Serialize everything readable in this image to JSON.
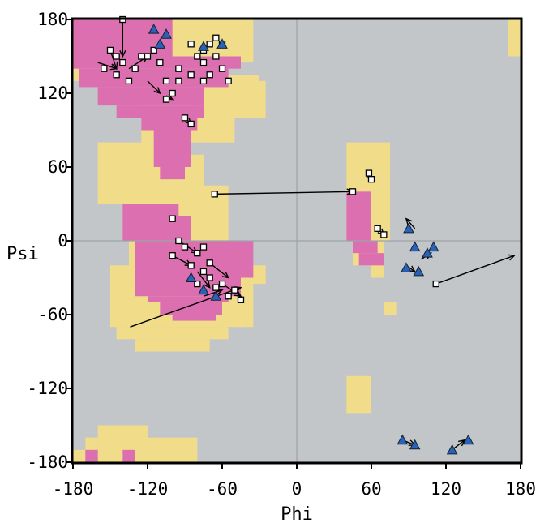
{
  "chart_data": {
    "type": "scatter",
    "title": "",
    "xlabel": "Phi",
    "ylabel": "Psi",
    "xlim": [
      -180,
      180
    ],
    "ylim": [
      -180,
      180
    ],
    "x_ticks": [
      "-180",
      "-120",
      "-60",
      "0",
      "60",
      "120",
      "180"
    ],
    "y_ticks": [
      "180",
      "120",
      "60",
      "0",
      "-60",
      "-120",
      "-180"
    ],
    "grid": "lines at phi=0 and psi=0 only",
    "colors": {
      "background": "#c2c6c9",
      "favored": "#dc6fb0",
      "allowed": "#f1dc8a",
      "gridline": "#9da3a7",
      "glycine_marker": "#2a62b8"
    },
    "regions": [
      {
        "level": "allowed",
        "rects": [
          [
            -180,
            -120,
            180,
            130
          ],
          [
            -125,
            -85,
            130,
            80
          ],
          [
            -160,
            -95,
            80,
            30
          ],
          [
            -120,
            -35,
            180,
            145
          ],
          [
            -75,
            -30,
            135,
            100
          ],
          [
            -85,
            -50,
            100,
            80
          ],
          [
            -60,
            -25,
            130,
            100
          ],
          [
            -110,
            -75,
            70,
            40
          ],
          [
            -135,
            -55,
            45,
            -20
          ],
          [
            -150,
            -25,
            -20,
            -35
          ],
          [
            -150,
            -35,
            -35,
            -60
          ],
          [
            -150,
            -40,
            -60,
            -70
          ],
          [
            -145,
            -55,
            -70,
            -80
          ],
          [
            -130,
            -70,
            -80,
            -90
          ],
          [
            -90,
            -85,
            -60,
            -70
          ],
          [
            -40,
            -35,
            -55,
            -70
          ],
          [
            -180,
            -170,
            -170,
            -180
          ],
          [
            -170,
            -160,
            -160,
            -180
          ],
          [
            -160,
            -120,
            -150,
            -180
          ],
          [
            -120,
            -80,
            -160,
            -180
          ],
          [
            40,
            75,
            80,
            50
          ],
          [
            40,
            75,
            50,
            0
          ],
          [
            35,
            80,
            0,
            0
          ],
          [
            45,
            70,
            0,
            -20
          ],
          [
            60,
            70,
            -20,
            -30
          ],
          [
            70,
            80,
            -50,
            -60
          ],
          [
            40,
            60,
            -110,
            -140
          ],
          [
            170,
            180,
            180,
            150
          ]
        ]
      },
      {
        "level": "favored",
        "rects": [
          [
            -180,
            -100,
            180,
            150
          ],
          [
            -180,
            -45,
            150,
            140
          ],
          [
            -175,
            -55,
            140,
            125
          ],
          [
            -160,
            -75,
            125,
            110
          ],
          [
            -145,
            -75,
            110,
            100
          ],
          [
            -125,
            -80,
            100,
            90
          ],
          [
            -115,
            -85,
            90,
            60
          ],
          [
            -110,
            -90,
            60,
            50
          ],
          [
            -140,
            -95,
            30,
            20
          ],
          [
            -140,
            -85,
            20,
            0
          ],
          [
            -130,
            -35,
            0,
            -30
          ],
          [
            -130,
            -45,
            -30,
            -45
          ],
          [
            -120,
            -55,
            -45,
            -50
          ],
          [
            -110,
            -60,
            -50,
            -60
          ],
          [
            -100,
            -65,
            -60,
            -65
          ],
          [
            40,
            60,
            40,
            0
          ],
          [
            45,
            65,
            0,
            -10
          ],
          [
            50,
            70,
            -10,
            -20
          ],
          [
            -170,
            -160,
            -170,
            -180
          ],
          [
            -140,
            -130,
            -170,
            -180
          ]
        ]
      }
    ],
    "arrows": [
      [
        -134,
        -70,
        -45,
        -38
      ],
      [
        -66,
        38,
        45,
        40
      ],
      [
        95,
        10,
        88,
        18
      ],
      [
        112,
        -35,
        175,
        -12
      ],
      [
        -140,
        180,
        -140,
        150
      ],
      [
        -150,
        155,
        -145,
        140
      ],
      [
        -120,
        130,
        -110,
        120
      ],
      [
        -90,
        100,
        -85,
        95
      ],
      [
        -160,
        145,
        -145,
        140
      ],
      [
        -105,
        118,
        -100,
        115
      ],
      [
        -135,
        140,
        -120,
        150
      ],
      [
        -95,
        0,
        -80,
        -10
      ],
      [
        -70,
        -18,
        -55,
        -30
      ],
      [
        -100,
        -12,
        -85,
        -20
      ],
      [
        -80,
        -25,
        -70,
        -38
      ],
      [
        -60,
        -35,
        -45,
        -45
      ],
      [
        -75,
        -45,
        -60,
        -40
      ],
      [
        58,
        50,
        60,
        55
      ],
      [
        65,
        10,
        70,
        5
      ],
      [
        88,
        -20,
        95,
        -25
      ],
      [
        100,
        -15,
        108,
        -10
      ],
      [
        125,
        -170,
        135,
        -162
      ],
      [
        85,
        -162,
        95,
        -166
      ]
    ],
    "points": {
      "general": [
        [
          -140,
          180
        ],
        [
          -150,
          155
        ],
        [
          -140,
          145
        ],
        [
          -155,
          140
        ],
        [
          -145,
          135
        ],
        [
          -130,
          140
        ],
        [
          -120,
          150
        ],
        [
          -110,
          145
        ],
        [
          -105,
          130
        ],
        [
          -95,
          140
        ],
        [
          -85,
          160
        ],
        [
          -80,
          150
        ],
        [
          -75,
          145
        ],
        [
          -70,
          160
        ],
        [
          -65,
          150
        ],
        [
          -60,
          140
        ],
        [
          -55,
          130
        ],
        [
          -75,
          130
        ],
        [
          -85,
          135
        ],
        [
          -95,
          130
        ],
        [
          -100,
          120
        ],
        [
          -105,
          115
        ],
        [
          -90,
          100
        ],
        [
          -85,
          95
        ],
        [
          -115,
          155
        ],
        [
          -125,
          150
        ],
        [
          -65,
          165
        ],
        [
          -70,
          135
        ],
        [
          -60,
          160
        ],
        [
          -75,
          155
        ],
        [
          -135,
          130
        ],
        [
          -145,
          150
        ],
        [
          -100,
          18
        ],
        [
          -95,
          0
        ],
        [
          -90,
          -5
        ],
        [
          -80,
          -10
        ],
        [
          -75,
          -5
        ],
        [
          -70,
          -18
        ],
        [
          -75,
          -25
        ],
        [
          -80,
          -35
        ],
        [
          -70,
          -30
        ],
        [
          -65,
          -38
        ],
        [
          -60,
          -35
        ],
        [
          -55,
          -45
        ],
        [
          -50,
          -40
        ],
        [
          -45,
          -48
        ],
        [
          -100,
          -12
        ],
        [
          -85,
          -20
        ],
        [
          -66,
          38
        ],
        [
          45,
          40
        ],
        [
          58,
          55
        ],
        [
          60,
          50
        ],
        [
          65,
          10
        ],
        [
          70,
          5
        ],
        [
          112,
          -35
        ]
      ],
      "glycine": [
        [
          -115,
          172
        ],
        [
          -105,
          168
        ],
        [
          -110,
          160
        ],
        [
          -60,
          160
        ],
        [
          -75,
          158
        ],
        [
          -75,
          -40
        ],
        [
          -65,
          -45
        ],
        [
          -85,
          -30
        ],
        [
          90,
          10
        ],
        [
          95,
          -5
        ],
        [
          105,
          -10
        ],
        [
          110,
          -5
        ],
        [
          88,
          -22
        ],
        [
          98,
          -25
        ],
        [
          85,
          -162
        ],
        [
          95,
          -166
        ],
        [
          125,
          -170
        ],
        [
          138,
          -162
        ]
      ]
    }
  }
}
